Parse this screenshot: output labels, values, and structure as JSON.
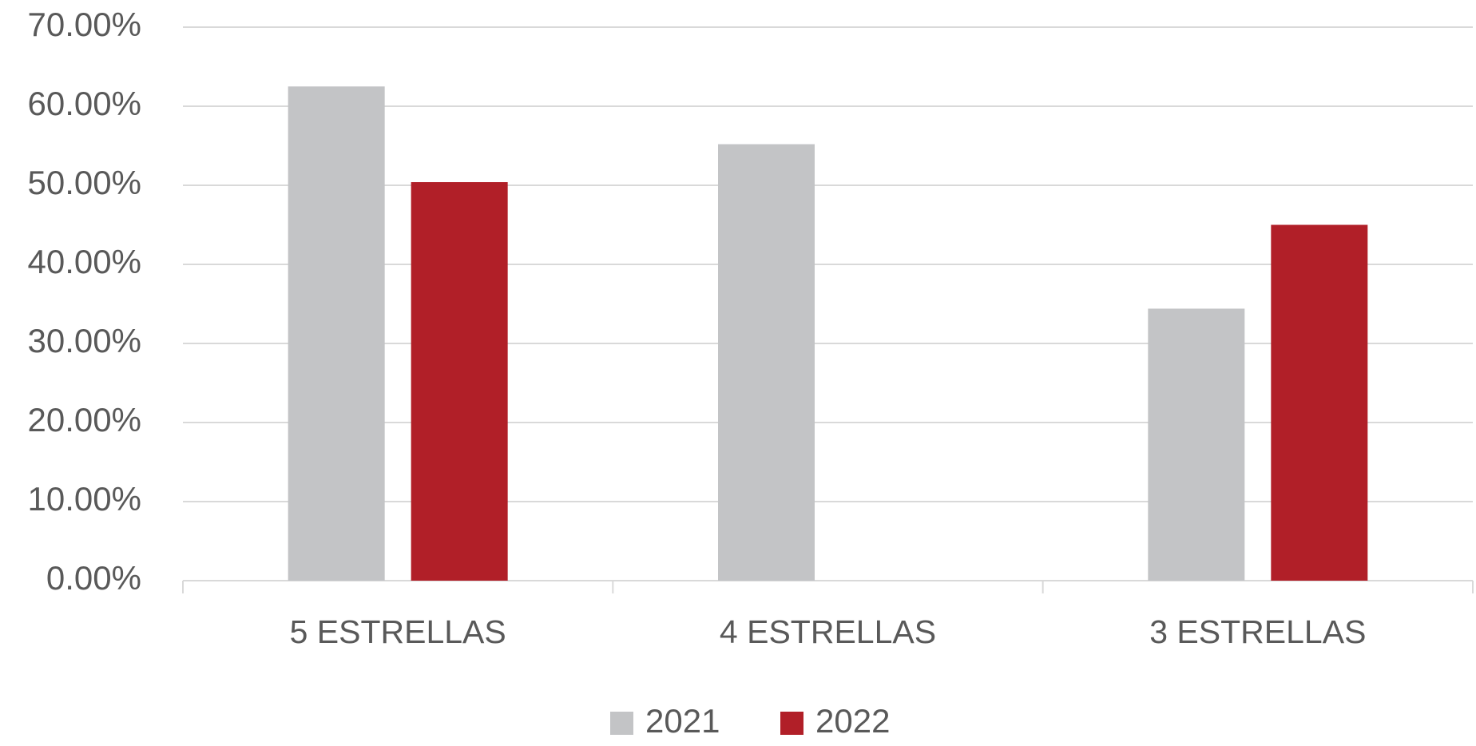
{
  "chart_data": {
    "type": "bar",
    "categories": [
      "5 ESTRELLAS",
      "4 ESTRELLAS",
      "3 ESTRELLAS"
    ],
    "series": [
      {
        "name": "2021",
        "color": "#c3c4c6",
        "values": [
          62.5,
          55.2,
          34.4
        ]
      },
      {
        "name": "2022",
        "color": "#b11f28",
        "values": [
          50.4,
          0,
          45.0
        ]
      }
    ],
    "ylim": [
      0,
      70
    ],
    "yticks": [
      {
        "value": 0,
        "label": "0.00%"
      },
      {
        "value": 10,
        "label": "10.00%"
      },
      {
        "value": 20,
        "label": "20.00%"
      },
      {
        "value": 30,
        "label": "30.00%"
      },
      {
        "value": 40,
        "label": "40.00%"
      },
      {
        "value": 50,
        "label": "50.00%"
      },
      {
        "value": 60,
        "label": "60.00%"
      },
      {
        "value": 70,
        "label": "70.00%"
      }
    ],
    "grid": true,
    "legend": "bottom"
  }
}
